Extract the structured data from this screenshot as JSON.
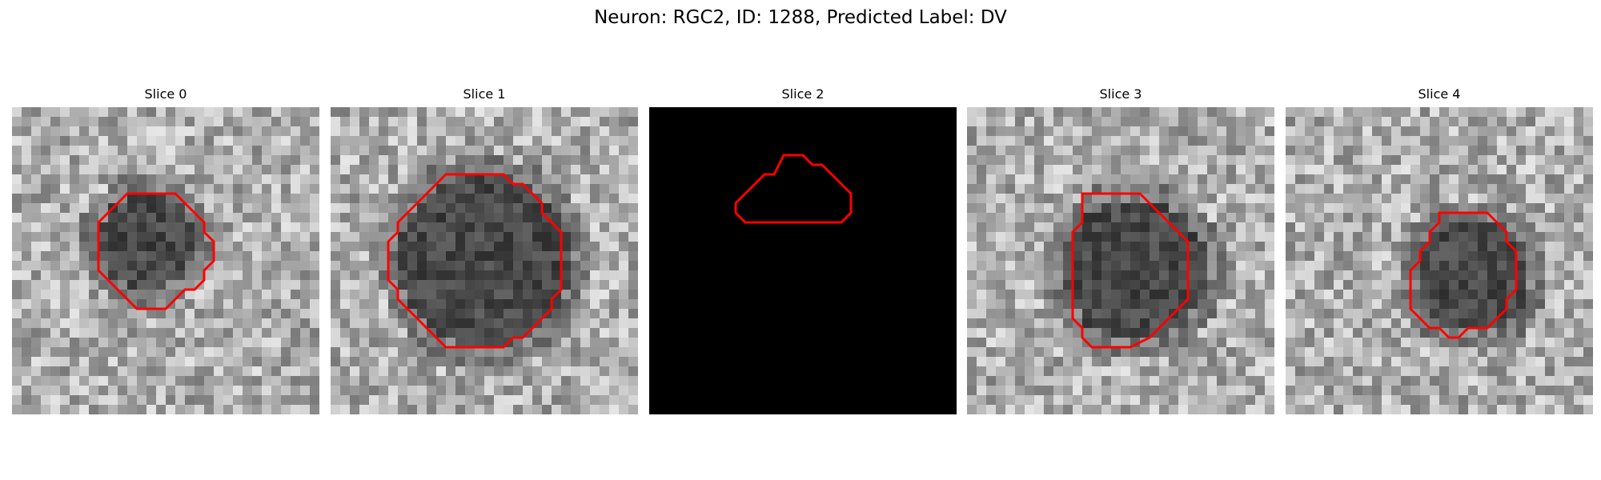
{
  "figure": {
    "title": "Neuron: RGC2, ID: 1288, Predicted Label: DV",
    "contour_color": "#ff0000",
    "colormap": "gray",
    "grid": 32,
    "panels": [
      {
        "title": "Slice 0",
        "blank": false,
        "cell": [
          14,
          14,
          5
        ],
        "contour": [
          [
            12,
            9
          ],
          [
            14,
            9
          ],
          [
            16,
            9
          ],
          [
            17,
            9
          ],
          [
            18,
            10
          ],
          [
            19,
            11
          ],
          [
            20,
            12
          ],
          [
            20,
            13
          ],
          [
            21,
            14
          ],
          [
            21,
            15
          ],
          [
            21,
            16
          ],
          [
            20,
            17
          ],
          [
            20,
            18
          ],
          [
            19,
            19
          ],
          [
            18,
            19
          ],
          [
            17,
            20
          ],
          [
            16,
            21
          ],
          [
            14,
            21
          ],
          [
            13,
            21
          ],
          [
            12,
            20
          ],
          [
            11,
            19
          ],
          [
            10,
            18
          ],
          [
            9,
            17
          ],
          [
            9,
            16
          ],
          [
            9,
            15
          ],
          [
            9,
            14
          ],
          [
            9,
            13
          ],
          [
            9,
            12
          ],
          [
            10,
            11
          ],
          [
            11,
            10
          ]
        ]
      },
      {
        "title": "Slice 1",
        "blank": false,
        "cell": [
          16,
          16,
          9
        ],
        "contour": [
          [
            12,
            7
          ],
          [
            14,
            7
          ],
          [
            16,
            7
          ],
          [
            18,
            7
          ],
          [
            19,
            8
          ],
          [
            20,
            8
          ],
          [
            21,
            9
          ],
          [
            22,
            10
          ],
          [
            22,
            11
          ],
          [
            23,
            12
          ],
          [
            24,
            13
          ],
          [
            24,
            14
          ],
          [
            24,
            16
          ],
          [
            24,
            18
          ],
          [
            24,
            19
          ],
          [
            23,
            20
          ],
          [
            23,
            21
          ],
          [
            22,
            22
          ],
          [
            21,
            23
          ],
          [
            20,
            24
          ],
          [
            19,
            24
          ],
          [
            18,
            25
          ],
          [
            16,
            25
          ],
          [
            14,
            25
          ],
          [
            12,
            25
          ],
          [
            11,
            24
          ],
          [
            10,
            23
          ],
          [
            9,
            22
          ],
          [
            8,
            21
          ],
          [
            7,
            20
          ],
          [
            7,
            19
          ],
          [
            6,
            18
          ],
          [
            6,
            16
          ],
          [
            6,
            14
          ],
          [
            7,
            13
          ],
          [
            7,
            12
          ],
          [
            8,
            11
          ],
          [
            9,
            10
          ],
          [
            10,
            9
          ],
          [
            11,
            8
          ]
        ]
      },
      {
        "title": "Slice 2",
        "blank": true,
        "cell": [
          0,
          0,
          0
        ],
        "contour": [
          [
            14,
            5
          ],
          [
            15,
            5
          ],
          [
            16,
            5
          ],
          [
            17,
            6
          ],
          [
            18,
            6
          ],
          [
            19,
            7
          ],
          [
            20,
            8
          ],
          [
            21,
            9
          ],
          [
            21,
            10
          ],
          [
            21,
            11
          ],
          [
            20,
            12
          ],
          [
            18,
            12
          ],
          [
            16,
            12
          ],
          [
            14,
            12
          ],
          [
            12,
            12
          ],
          [
            10,
            12
          ],
          [
            9,
            11
          ],
          [
            9,
            10
          ],
          [
            10,
            9
          ],
          [
            11,
            8
          ],
          [
            12,
            7
          ],
          [
            13,
            7
          ]
        ]
      },
      {
        "title": "Slice 3",
        "blank": false,
        "cell": [
          17.5,
          17,
          7.5
        ],
        "contour": [
          [
            12,
            9
          ],
          [
            14,
            9
          ],
          [
            16,
            9
          ],
          [
            18,
            9
          ],
          [
            19,
            10
          ],
          [
            20,
            11
          ],
          [
            21,
            12
          ],
          [
            22,
            13
          ],
          [
            23,
            14
          ],
          [
            23,
            15
          ],
          [
            23,
            17
          ],
          [
            23,
            19
          ],
          [
            23,
            20
          ],
          [
            22,
            21
          ],
          [
            21,
            22
          ],
          [
            20,
            23
          ],
          [
            19,
            24
          ],
          [
            17,
            25
          ],
          [
            15,
            25
          ],
          [
            13,
            25
          ],
          [
            12,
            24
          ],
          [
            12,
            23
          ],
          [
            11,
            22
          ],
          [
            11,
            20
          ],
          [
            11,
            18
          ],
          [
            11,
            16
          ],
          [
            11,
            14
          ],
          [
            11,
            13
          ],
          [
            12,
            12
          ],
          [
            12,
            11
          ]
        ]
      },
      {
        "title": "Slice 4",
        "blank": false,
        "cell": [
          19.5,
          17.5,
          6
        ],
        "contour": [
          [
            16,
            11
          ],
          [
            18,
            11
          ],
          [
            20,
            11
          ],
          [
            21,
            11
          ],
          [
            22,
            12
          ],
          [
            23,
            13
          ],
          [
            23,
            14
          ],
          [
            24,
            15
          ],
          [
            24,
            16
          ],
          [
            24,
            18
          ],
          [
            24,
            19
          ],
          [
            23,
            20
          ],
          [
            23,
            21
          ],
          [
            22,
            22
          ],
          [
            21,
            23
          ],
          [
            20,
            23
          ],
          [
            19,
            23
          ],
          [
            18,
            24
          ],
          [
            17,
            24
          ],
          [
            16,
            23
          ],
          [
            15,
            23
          ],
          [
            14,
            22
          ],
          [
            13,
            21
          ],
          [
            13,
            19
          ],
          [
            13,
            17
          ],
          [
            14,
            16
          ],
          [
            14,
            15
          ],
          [
            15,
            14
          ],
          [
            15,
            13
          ],
          [
            16,
            12
          ]
        ]
      }
    ]
  }
}
